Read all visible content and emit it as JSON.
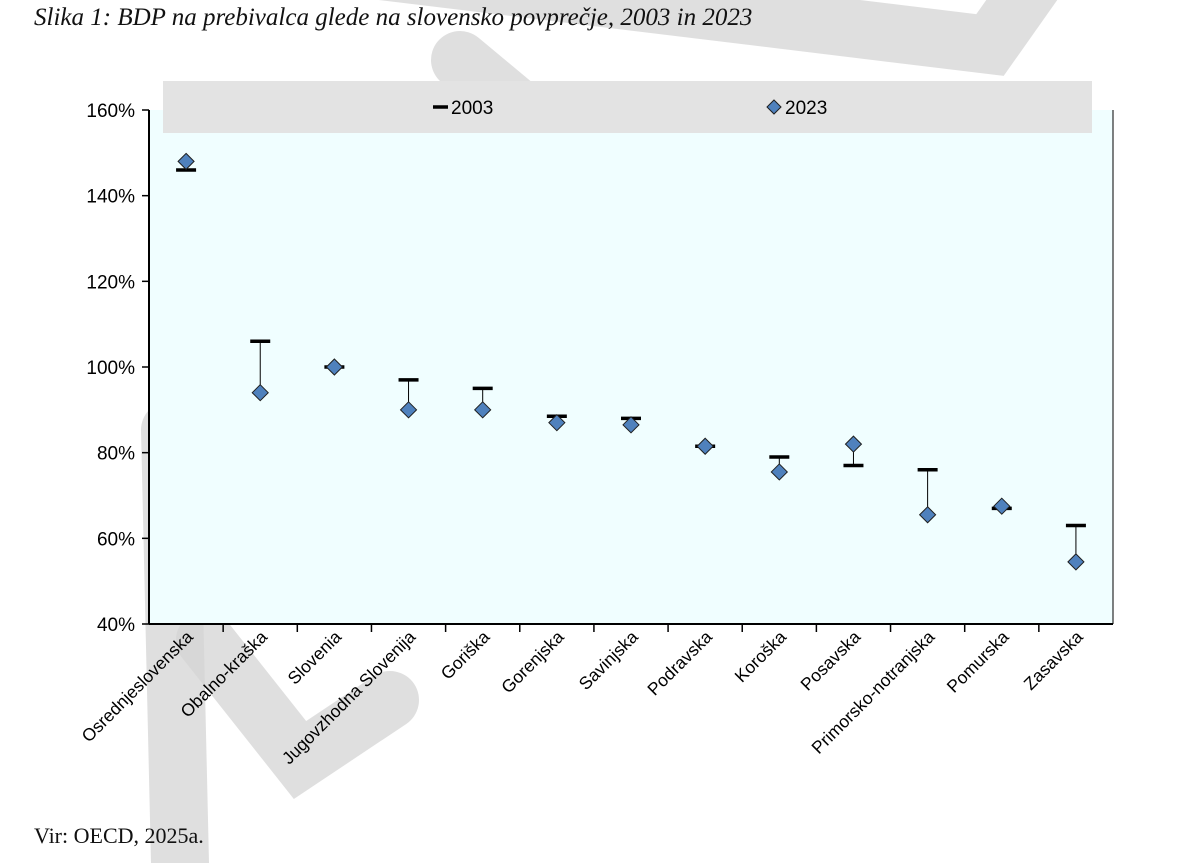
{
  "caption": "Slika 1: BDP na prebivalca glede na slovensko povprečje, 2003 in 2023",
  "source": "Vir: OECD, 2025a.",
  "colors": {
    "plot_background": "#f0feff",
    "marker_2023": "#4f81bd",
    "marker_2003": "#000000",
    "legend_background": "#e3e3e3"
  },
  "chart_data": {
    "type": "scatter",
    "title": "",
    "xlabel": "",
    "ylabel": "",
    "ylim": [
      40,
      160
    ],
    "y_ticks": [
      40,
      60,
      80,
      100,
      120,
      140,
      160
    ],
    "y_tick_labels": [
      "40%",
      "60%",
      "80%",
      "100%",
      "120%",
      "140%",
      "160%"
    ],
    "categories": [
      "Osrednjeslovenska",
      "Obalno-kraška",
      "Slovenia",
      "Jugovzhodna Slovenija",
      "Goriška",
      "Gorenjska",
      "Savinjska",
      "Podravska",
      "Koroška",
      "Posavska",
      "Primorsko-notranjska",
      "Pomurska",
      "Zasavska"
    ],
    "series": [
      {
        "name": "2003",
        "marker": "dash",
        "values": [
          146,
          106,
          100,
          97,
          95,
          88.5,
          88,
          81.5,
          79,
          77,
          76,
          67,
          63
        ]
      },
      {
        "name": "2023",
        "marker": "diamond",
        "values": [
          148,
          94,
          100,
          90,
          90,
          87,
          86.5,
          81.5,
          75.5,
          82,
          65.5,
          67.5,
          54.5
        ]
      }
    ],
    "legend": {
      "position": "top",
      "entries": [
        "2003",
        "2023"
      ]
    },
    "grid": false
  }
}
